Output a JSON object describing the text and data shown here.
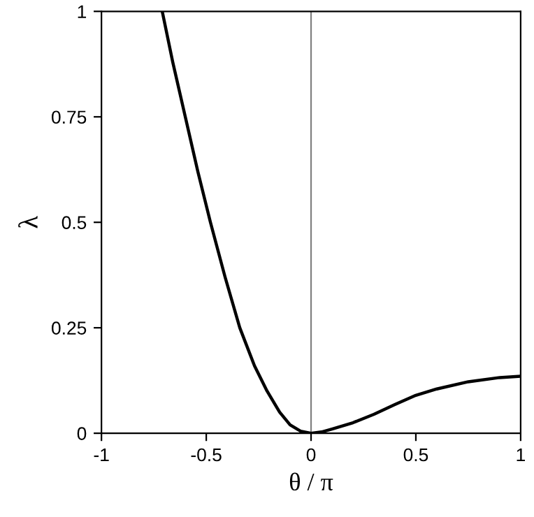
{
  "chart_data": {
    "type": "line",
    "xlabel": "θ / π",
    "ylabel": "λ",
    "x": [
      -0.71,
      -0.66,
      -0.6,
      -0.54,
      -0.48,
      -0.41,
      -0.34,
      -0.27,
      -0.21,
      -0.15,
      -0.1,
      -0.05,
      0,
      0.05,
      0.1,
      0.2,
      0.3,
      0.4,
      0.5,
      0.6,
      0.75,
      0.9,
      1
    ],
    "series": [
      {
        "color": "#000000",
        "values": [
          1,
          0.88,
          0.75,
          0.62,
          0.5,
          0.37,
          0.25,
          0.16,
          0.1,
          0.05,
          0.02,
          0.005,
          0,
          0.003,
          0.01,
          0.025,
          0.045,
          0.068,
          0.09,
          0.105,
          0.122,
          0.132,
          0.135
        ]
      }
    ],
    "xlim": [
      -1,
      1
    ],
    "ylim": [
      0,
      1
    ],
    "xticks": [
      {
        "value": -1,
        "label": "-1"
      },
      {
        "value": -0.5,
        "label": "-0.5"
      },
      0,
      0.5,
      1
    ],
    "yticks": [
      0,
      0.25,
      0.5,
      0.75,
      1
    ],
    "ref_lines": [
      {
        "axis": "x",
        "value": 0,
        "color": "#808080"
      }
    ],
    "grid": false,
    "legend": false,
    "marker": "none",
    "line_style": "solid"
  }
}
